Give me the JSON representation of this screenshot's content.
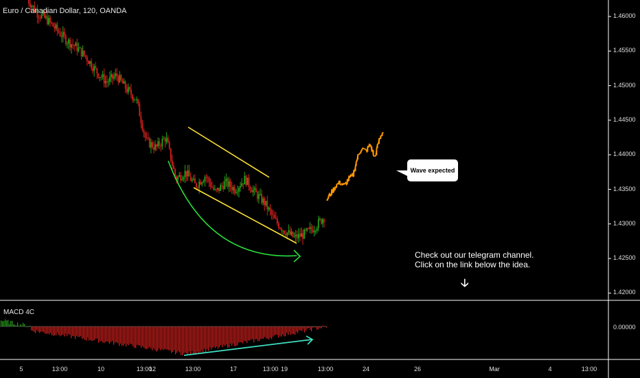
{
  "header": {
    "title": "Euro / Canadian Dollar, 120, OANDA"
  },
  "indicator": {
    "title": "MACD 4C",
    "zero_label": "0.00000"
  },
  "annotations": {
    "callout": "Wave expected",
    "note_line1": "Check out our telegram channel.",
    "note_line2": "Click on the link below the idea."
  },
  "colors": {
    "bull": "#26a31a",
    "bear": "#d4211c",
    "forecast": "#ff9800",
    "channel": "#ffe135",
    "curve": "#28e03c",
    "divergence": "#40e0c0"
  },
  "chart_data": {
    "type": "candlestick",
    "y_axis_ticks": [
      "1.46000",
      "1.45500",
      "1.45000",
      "1.44500",
      "1.44000",
      "1.43500",
      "1.43000",
      "1.42500",
      "1.42000"
    ],
    "y_axis_values": [
      1.46,
      1.455,
      1.45,
      1.445,
      1.44,
      1.435,
      1.43,
      1.425,
      1.42
    ],
    "x_axis_ticks": [
      "5",
      "13:00",
      "10",
      "13:00",
      "12",
      "13:00",
      "17",
      "13:00",
      "19",
      "13:00",
      "24",
      "26",
      "Mar",
      "4",
      "13:00"
    ],
    "price_path_close": [
      1.4625,
      1.4605,
      1.4595,
      1.458,
      1.4565,
      1.4555,
      1.454,
      1.452,
      1.4505,
      1.4515,
      1.4495,
      1.448,
      1.442,
      1.441,
      1.4425,
      1.4365,
      1.4375,
      1.4355,
      1.437,
      1.4345,
      1.436,
      1.435,
      1.4365,
      1.4345,
      1.433,
      1.4305,
      1.429,
      1.428,
      1.4285,
      1.4295,
      1.431
    ],
    "forecast_path": [
      1.4335,
      1.4345,
      1.4355,
      1.436,
      1.4355,
      1.4365,
      1.437,
      1.4395,
      1.441,
      1.4405,
      1.4415,
      1.4395,
      1.442,
      1.4435
    ],
    "macd_histogram": "below zero throughout, deepest near the 13:00 after 12, recovering toward zero by 13:00 after 19"
  }
}
